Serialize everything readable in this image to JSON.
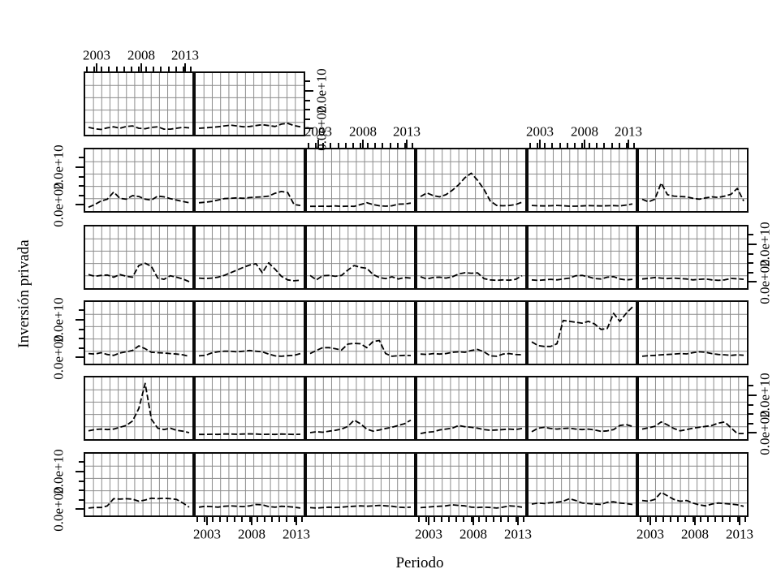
{
  "figure": {
    "background": "#ffffff",
    "line_color": "#000000",
    "grid_color": "#8c8c8c",
    "border_color": "#0a0a0a",
    "text_color": "#000000"
  },
  "chart_data": {
    "type": "line",
    "title": "",
    "xlabel": "Periodo",
    "ylabel": "Inversión privada",
    "x_tick_labels": [
      "2003",
      "2008",
      "2013"
    ],
    "y_tick_labels": [
      "0.0e+00",
      "2.0e+10"
    ],
    "y_tick_values": [
      0,
      20000000000
    ],
    "x_range_years": [
      2000,
      2016
    ],
    "y_range": [
      -2000000000,
      26000000000
    ],
    "grid": true,
    "legend": "none",
    "units": "series values in billions (1e9), y axis labeled 0.0e+00 to 2.0e+10",
    "layout_note": "trellis of 32 unlabeled line panels in 6 columns; partial top row of 2 panels; x and y axes alternate sides (lattice style)",
    "years": [
      2000,
      2001,
      2002,
      2003,
      2004,
      2005,
      2006,
      2007,
      2008,
      2009,
      2010,
      2011,
      2012,
      2013,
      2014,
      2015,
      2016
    ],
    "panels": [
      {
        "row": 1,
        "col": 1,
        "values": [
          0,
          -0.8,
          -1.2,
          -0.3,
          0.3,
          -0.5,
          0.5,
          0.8,
          -0.5,
          -0.8,
          0,
          0.3,
          -1,
          -1,
          -0.5,
          0,
          -0.3
        ]
      },
      {
        "row": 1,
        "col": 2,
        "values": [
          -0.5,
          -0.3,
          0,
          0.3,
          0.8,
          1.2,
          0.8,
          0.3,
          0.5,
          1,
          1.5,
          1,
          0.5,
          1.8,
          2.2,
          1,
          0.3
        ]
      },
      {
        "row": 2,
        "col": 1,
        "values": [
          -2,
          -0.5,
          1.5,
          2.5,
          6.5,
          3,
          2.5,
          4.5,
          4,
          2.5,
          2,
          4.2,
          3.8,
          2.8,
          2,
          1.2,
          0.5
        ]
      },
      {
        "row": 2,
        "col": 2,
        "values": [
          0.5,
          0.8,
          1.2,
          2,
          2.8,
          3,
          3.2,
          3,
          3.4,
          3.6,
          3.8,
          4.2,
          5.8,
          6.8,
          6.2,
          -0.5,
          -1
        ]
      },
      {
        "row": 2,
        "col": 3,
        "values": [
          -1.5,
          -1.5,
          -1.4,
          -1.5,
          -1.3,
          -1.5,
          -1.4,
          -1.5,
          -0.5,
          0.5,
          -0.5,
          -1.2,
          -1.4,
          -1.2,
          -0.3,
          -0.2,
          0.3
        ]
      },
      {
        "row": 2,
        "col": 4,
        "values": [
          4,
          6,
          4.5,
          3.8,
          5,
          7.5,
          10.5,
          14.5,
          17,
          13,
          8,
          1.5,
          -1,
          -1.2,
          -1,
          -0.5,
          0.8
        ]
      },
      {
        "row": 2,
        "col": 5,
        "values": [
          -1,
          -1.2,
          -1.3,
          -1.2,
          -1,
          -1.2,
          -1.4,
          -1.4,
          -1.3,
          -1.1,
          -1.2,
          -1.3,
          -1.2,
          -1.1,
          -1.3,
          -0.8,
          -0.2
        ]
      },
      {
        "row": 2,
        "col": 6,
        "values": [
          2.5,
          1,
          2.5,
          11.5,
          5,
          4.2,
          4,
          3.8,
          3,
          2.5,
          3.2,
          3.8,
          3.5,
          4.2,
          5.2,
          8.5,
          1.5
        ]
      },
      {
        "row": 3,
        "col": 1,
        "values": [
          3.5,
          2.5,
          3,
          3.2,
          2,
          3.5,
          2.5,
          2,
          8.5,
          9.8,
          8,
          1.5,
          0.8,
          2.8,
          2,
          1,
          -0.5
        ]
      },
      {
        "row": 3,
        "col": 2,
        "values": [
          1.5,
          1.2,
          1.5,
          2,
          3,
          4.5,
          6,
          7.5,
          8.8,
          9.5,
          4.5,
          10,
          6.5,
          2.5,
          0.5,
          0,
          0.3
        ]
      },
      {
        "row": 3,
        "col": 3,
        "values": [
          3,
          0.5,
          2.8,
          3,
          2.5,
          3,
          6,
          8.5,
          7.5,
          7,
          3.5,
          1.8,
          1.2,
          2.2,
          1,
          1.8,
          1.5
        ]
      },
      {
        "row": 3,
        "col": 4,
        "values": [
          2.2,
          1,
          1.8,
          2,
          1.5,
          2.2,
          3.8,
          4.5,
          4.2,
          4.4,
          1.2,
          0.5,
          0.2,
          0.5,
          0.3,
          0.8,
          2.8
        ]
      },
      {
        "row": 3,
        "col": 5,
        "values": [
          0.5,
          0.2,
          0.5,
          0.8,
          0.5,
          1,
          1.5,
          2.8,
          3,
          2.2,
          1.2,
          1,
          2,
          2.3,
          1,
          0.5,
          0.8
        ]
      },
      {
        "row": 3,
        "col": 6,
        "values": [
          1,
          1.3,
          1.8,
          1.5,
          1.2,
          1.5,
          1.2,
          1,
          0.5,
          0.8,
          1,
          0.5,
          0.2,
          0.5,
          1.3,
          1.1,
          0.8
        ]
      },
      {
        "row": 4,
        "col": 1,
        "values": [
          1.5,
          1.2,
          2,
          1,
          0.5,
          1.8,
          2.5,
          3.2,
          5.8,
          4.2,
          2.2,
          2,
          1.8,
          1.5,
          1.2,
          0.8,
          0
        ]
      },
      {
        "row": 4,
        "col": 2,
        "values": [
          0.2,
          0.5,
          1.8,
          2.5,
          2.8,
          2.8,
          2.5,
          2.8,
          3.2,
          2.8,
          2.5,
          1.2,
          0.2,
          0,
          0.3,
          0.5,
          1.5
        ]
      },
      {
        "row": 4,
        "col": 3,
        "values": [
          1.5,
          3.2,
          4.8,
          4.8,
          4.2,
          3.5,
          6.8,
          7.2,
          7,
          4.8,
          8.2,
          8.8,
          1.5,
          0,
          0.3,
          0.5,
          0.4
        ]
      },
      {
        "row": 4,
        "col": 4,
        "values": [
          1.2,
          1,
          1.5,
          1.2,
          1.5,
          2.2,
          2.5,
          2.2,
          3.2,
          3.8,
          2.5,
          0.2,
          0,
          1.2,
          1.5,
          1,
          0.8
        ]
      },
      {
        "row": 4,
        "col": 5,
        "values": [
          8,
          6,
          5.5,
          5.5,
          7,
          20,
          19.5,
          19,
          18.5,
          19.5,
          18,
          15,
          15.5,
          24,
          19.5,
          24,
          27.5
        ]
      },
      {
        "row": 4,
        "col": 6,
        "values": [
          0,
          0.3,
          0.5,
          0.8,
          1,
          1.2,
          1.5,
          1.3,
          2,
          2.5,
          2.2,
          1.5,
          1,
          0.8,
          0.5,
          0.8,
          0.6
        ]
      },
      {
        "row": 5,
        "col": 1,
        "values": [
          0.5,
          1.2,
          1.5,
          1.2,
          1.5,
          2.5,
          3.5,
          6,
          13,
          27,
          7,
          2,
          1.2,
          2,
          0.8,
          0.3,
          -0.5
        ]
      },
      {
        "row": 5,
        "col": 2,
        "values": [
          -1.5,
          -1.5,
          -1.4,
          -1.5,
          -1.3,
          -1.3,
          -1.4,
          -1.3,
          -1.2,
          -1.3,
          -1.5,
          -1.4,
          -1.5,
          -1.3,
          -1.4,
          -1.5,
          -1.4
        ]
      },
      {
        "row": 5,
        "col": 3,
        "values": [
          -0.5,
          0,
          -0.3,
          0.3,
          0.8,
          1.5,
          3,
          6.5,
          4.5,
          1.5,
          0.3,
          1,
          1.8,
          2.5,
          3.5,
          4.5,
          6.5
        ]
      },
      {
        "row": 5,
        "col": 4,
        "values": [
          -1,
          -0.3,
          0,
          1,
          1.5,
          2,
          3.5,
          2.8,
          2.5,
          2,
          1.2,
          0.8,
          1,
          1.2,
          1.5,
          1.2,
          1.8
        ]
      },
      {
        "row": 5,
        "col": 5,
        "values": [
          0,
          2,
          2.5,
          1.8,
          1.5,
          1.8,
          2,
          1.5,
          1.2,
          1.5,
          1,
          0.2,
          0.5,
          1.2,
          3.5,
          4,
          3
        ]
      },
      {
        "row": 5,
        "col": 6,
        "values": [
          1.5,
          2.2,
          3,
          5.5,
          3.8,
          1.8,
          0.5,
          1.2,
          2,
          2.5,
          3,
          3.5,
          4.8,
          5.5,
          2.2,
          -1,
          -1
        ]
      },
      {
        "row": 6,
        "col": 1,
        "values": [
          0,
          0.3,
          0.3,
          1.2,
          5.2,
          5,
          5.2,
          5,
          3.8,
          4.5,
          5.5,
          5.2,
          5.5,
          5.2,
          4.8,
          2.8,
          0.5
        ]
      },
      {
        "row": 6,
        "col": 2,
        "values": [
          0.5,
          1,
          0.8,
          0.5,
          1,
          1.2,
          1,
          0.8,
          1.2,
          2,
          1.8,
          0.8,
          0.5,
          1,
          0.8,
          0.5,
          0
        ]
      },
      {
        "row": 6,
        "col": 3,
        "values": [
          0.2,
          0,
          0.2,
          0.5,
          0.3,
          0.5,
          0.8,
          1,
          1.2,
          1,
          1.2,
          1.5,
          1.2,
          1,
          0.5,
          0.3,
          0.5
        ]
      },
      {
        "row": 6,
        "col": 4,
        "values": [
          0.2,
          0.5,
          0.8,
          1,
          1.2,
          1.8,
          1.5,
          1.2,
          0.5,
          0.3,
          0.5,
          0.3,
          0,
          0.5,
          1.2,
          1,
          0.5
        ]
      },
      {
        "row": 6,
        "col": 5,
        "values": [
          2.2,
          2.8,
          2.5,
          3,
          3.2,
          3.8,
          5.2,
          4.2,
          2.8,
          2.5,
          2.2,
          2,
          3.2,
          3.5,
          2.8,
          2.5,
          2
        ]
      },
      {
        "row": 6,
        "col": 6,
        "values": [
          4.2,
          3.8,
          4.8,
          8.8,
          6.8,
          4.8,
          3.8,
          4.2,
          2.8,
          1.8,
          1.2,
          2.2,
          2.8,
          2.5,
          2.2,
          1.8,
          1
        ]
      }
    ]
  },
  "axes": {
    "top_x_axes": [
      {
        "row": 1,
        "col": 1
      },
      {
        "row": 2,
        "col": 3
      },
      {
        "row": 2,
        "col": 5
      }
    ],
    "bottom_x_axes": [
      {
        "row": 6,
        "col": 2
      },
      {
        "row": 6,
        "col": 4
      },
      {
        "row": 6,
        "col": 6
      }
    ],
    "left_y_axes": [
      {
        "row": 2
      },
      {
        "row": 4
      },
      {
        "row": 6
      }
    ],
    "right_y_axes": [
      {
        "row": 1,
        "col": 2
      },
      {
        "row": 3,
        "col": 6
      },
      {
        "row": 5,
        "col": 6
      }
    ]
  }
}
